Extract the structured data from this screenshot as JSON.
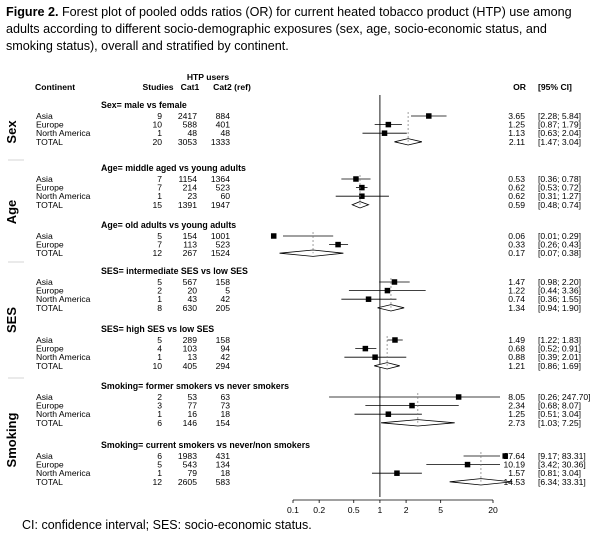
{
  "figure": {
    "label": "Figure 2.",
    "caption": "Forest plot of pooled odds ratios (OR) for current heated tobacco product (HTP) use among adults according to different socio-demographic exposures (sex, age, socio-economic status, and smoking status), overall and stratified by continent.",
    "footnote": "CI: confidence interval; SES: socio-economic status."
  },
  "chart_data": {
    "type": "forest",
    "x_scale": "log",
    "x_ticks": [
      "0.1",
      "0.2",
      "0.5",
      "1",
      "2",
      "5",
      "20"
    ],
    "reference_line": 1,
    "headers": {
      "continent": "Continent",
      "htp_users": "HTP users",
      "studies": "Studies",
      "cat1": "Cat1",
      "cat2": "Cat2 (ref)",
      "or": "OR",
      "ci": "[95% CI]"
    },
    "side_labels": [
      "Sex",
      "Age",
      "SES",
      "Smoking"
    ],
    "groups": [
      {
        "title": "Sex= male vs female",
        "rows": [
          {
            "name": "Asia",
            "studies": "9",
            "cat1": "2417",
            "cat2": "884",
            "or": 3.65,
            "lo": 2.28,
            "hi": 5.84,
            "or_text": "3.65",
            "ci_text": "[2.28; 5.84]"
          },
          {
            "name": "Europe",
            "studies": "10",
            "cat1": "588",
            "cat2": "401",
            "or": 1.25,
            "lo": 0.87,
            "hi": 1.79,
            "or_text": "1.25",
            "ci_text": "[0.87; 1.79]"
          },
          {
            "name": "North America",
            "studies": "1",
            "cat1": "48",
            "cat2": "48",
            "or": 1.13,
            "lo": 0.63,
            "hi": 2.04,
            "or_text": "1.13",
            "ci_text": "[0.63; 2.04]"
          },
          {
            "name": "TOTAL",
            "studies": "20",
            "cat1": "3053",
            "cat2": "1333",
            "or": 2.11,
            "lo": 1.47,
            "hi": 3.04,
            "or_text": "2.11",
            "ci_text": "[1.47; 3.04]",
            "total": true
          }
        ]
      },
      {
        "title": "Age= middle aged vs young adults",
        "rows": [
          {
            "name": "Asia",
            "studies": "7",
            "cat1": "1154",
            "cat2": "1364",
            "or": 0.53,
            "lo": 0.36,
            "hi": 0.78,
            "or_text": "0.53",
            "ci_text": "[0.36; 0.78]"
          },
          {
            "name": "Europe",
            "studies": "7",
            "cat1": "214",
            "cat2": "523",
            "or": 0.62,
            "lo": 0.53,
            "hi": 0.72,
            "or_text": "0.62",
            "ci_text": "[0.53; 0.72]"
          },
          {
            "name": "North America",
            "studies": "1",
            "cat1": "23",
            "cat2": "60",
            "or": 0.62,
            "lo": 0.31,
            "hi": 1.27,
            "or_text": "0.62",
            "ci_text": "[0.31; 1.27]"
          },
          {
            "name": "TOTAL",
            "studies": "15",
            "cat1": "1391",
            "cat2": "1947",
            "or": 0.59,
            "lo": 0.48,
            "hi": 0.74,
            "or_text": "0.59",
            "ci_text": "[0.48; 0.74]",
            "total": true
          }
        ]
      },
      {
        "title": "Age= old adults vs young adults",
        "rows": [
          {
            "name": "Asia",
            "studies": "5",
            "cat1": "154",
            "cat2": "1001",
            "or": 0.06,
            "lo": 0.01,
            "hi": 0.29,
            "or_text": "0.06",
            "ci_text": "[0.01; 0.29]"
          },
          {
            "name": "Europe",
            "studies": "7",
            "cat1": "113",
            "cat2": "523",
            "or": 0.33,
            "lo": 0.26,
            "hi": 0.43,
            "or_text": "0.33",
            "ci_text": "[0.26; 0.43]"
          },
          {
            "name": "TOTAL",
            "studies": "12",
            "cat1": "267",
            "cat2": "1524",
            "or": 0.17,
            "lo": 0.07,
            "hi": 0.38,
            "or_text": "0.17",
            "ci_text": "[0.07; 0.38]",
            "total": true
          }
        ]
      },
      {
        "title": "SES= intermediate SES vs low SES",
        "rows": [
          {
            "name": "Asia",
            "studies": "5",
            "cat1": "567",
            "cat2": "158",
            "or": 1.47,
            "lo": 0.98,
            "hi": 2.2,
            "or_text": "1.47",
            "ci_text": "[0.98; 2.20]"
          },
          {
            "name": "Europe",
            "studies": "2",
            "cat1": "20",
            "cat2": "5",
            "or": 1.22,
            "lo": 0.44,
            "hi": 3.36,
            "or_text": "1.22",
            "ci_text": "[0.44; 3.36]"
          },
          {
            "name": "North America",
            "studies": "1",
            "cat1": "43",
            "cat2": "42",
            "or": 0.74,
            "lo": 0.36,
            "hi": 1.55,
            "or_text": "0.74",
            "ci_text": "[0.36; 1.55]"
          },
          {
            "name": "TOTAL",
            "studies": "8",
            "cat1": "630",
            "cat2": "205",
            "or": 1.34,
            "lo": 0.94,
            "hi": 1.9,
            "or_text": "1.34",
            "ci_text": "[0.94; 1.90]",
            "total": true
          }
        ]
      },
      {
        "title": "SES= high SES vs low SES",
        "rows": [
          {
            "name": "Asia",
            "studies": "5",
            "cat1": "289",
            "cat2": "158",
            "or": 1.49,
            "lo": 1.22,
            "hi": 1.83,
            "or_text": "1.49",
            "ci_text": "[1.22; 1.83]"
          },
          {
            "name": "Europe",
            "studies": "4",
            "cat1": "103",
            "cat2": "94",
            "or": 0.68,
            "lo": 0.52,
            "hi": 0.91,
            "or_text": "0.68",
            "ci_text": "[0.52; 0.91]"
          },
          {
            "name": "North America",
            "studies": "1",
            "cat1": "13",
            "cat2": "42",
            "or": 0.88,
            "lo": 0.39,
            "hi": 2.01,
            "or_text": "0.88",
            "ci_text": "[0.39; 2.01]"
          },
          {
            "name": "TOTAL",
            "studies": "10",
            "cat1": "405",
            "cat2": "294",
            "or": 1.21,
            "lo": 0.86,
            "hi": 1.69,
            "or_text": "1.21",
            "ci_text": "[0.86; 1.69]",
            "total": true
          }
        ]
      },
      {
        "title": "Smoking= former smokers vs never smokers",
        "rows": [
          {
            "name": "Asia",
            "studies": "2",
            "cat1": "53",
            "cat2": "63",
            "or": 8.05,
            "lo": 0.26,
            "hi": 247.7,
            "or_text": "8.05",
            "ci_text": "[0.26; 247.70]"
          },
          {
            "name": "Europe",
            "studies": "3",
            "cat1": "77",
            "cat2": "73",
            "or": 2.34,
            "lo": 0.68,
            "hi": 8.07,
            "or_text": "2.34",
            "ci_text": "[0.68; 8.07]"
          },
          {
            "name": "North America",
            "studies": "1",
            "cat1": "16",
            "cat2": "18",
            "or": 1.25,
            "lo": 0.51,
            "hi": 3.04,
            "or_text": "1.25",
            "ci_text": "[0.51; 3.04]"
          },
          {
            "name": "TOTAL",
            "studies": "6",
            "cat1": "146",
            "cat2": "154",
            "or": 2.73,
            "lo": 1.03,
            "hi": 7.25,
            "or_text": "2.73",
            "ci_text": "[1.03; 7.25]",
            "total": true
          }
        ]
      },
      {
        "title": "Smoking= current smokers vs never/non smokers",
        "rows": [
          {
            "name": "Asia",
            "studies": "6",
            "cat1": "1983",
            "cat2": "431",
            "or": 27.64,
            "lo": 9.17,
            "hi": 83.31,
            "or_text": "27.64",
            "ci_text": "[9.17; 83.31]"
          },
          {
            "name": "Europe",
            "studies": "5",
            "cat1": "543",
            "cat2": "134",
            "or": 10.19,
            "lo": 3.42,
            "hi": 30.36,
            "or_text": "10.19",
            "ci_text": "[3.42; 30.36]"
          },
          {
            "name": "North America",
            "studies": "1",
            "cat1": "79",
            "cat2": "18",
            "or": 1.57,
            "lo": 0.81,
            "hi": 3.04,
            "or_text": "1.57",
            "ci_text": "[0.81; 3.04]"
          },
          {
            "name": "TOTAL",
            "studies": "12",
            "cat1": "2605",
            "cat2": "583",
            "or": 14.53,
            "lo": 6.34,
            "hi": 33.31,
            "or_text": "14.53",
            "ci_text": "[6.34; 33.31]",
            "total": true
          }
        ]
      }
    ]
  }
}
